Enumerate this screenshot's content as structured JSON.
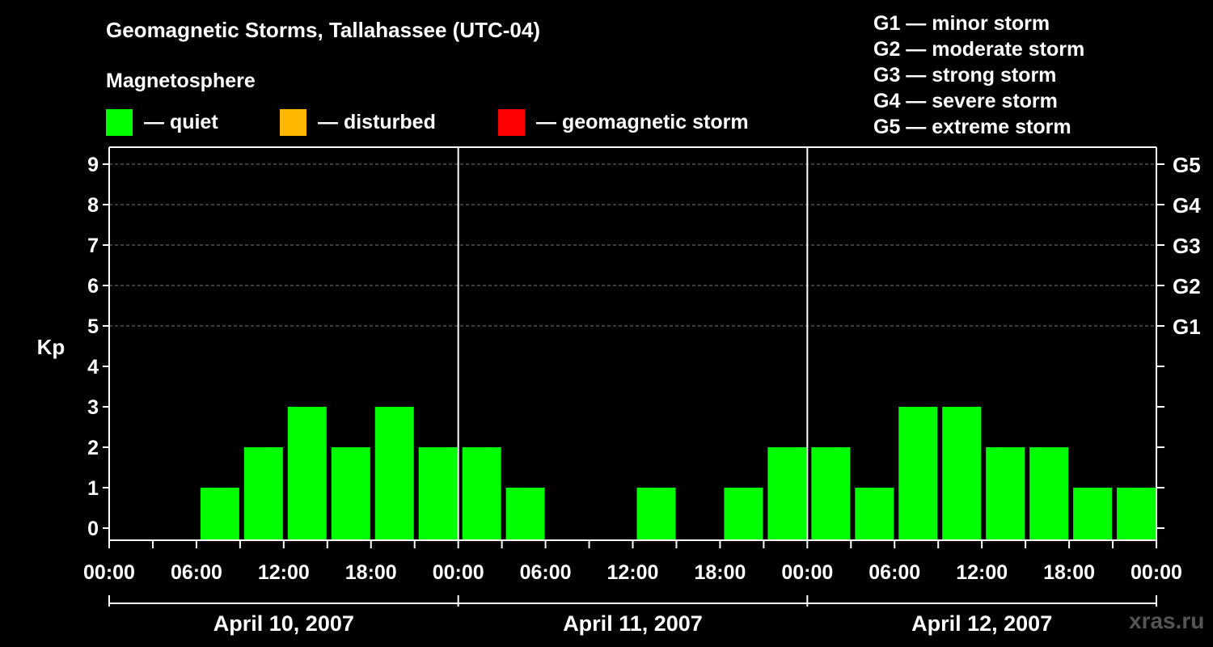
{
  "chart_data": {
    "type": "bar",
    "title": "Geomagnetic Storms, Tallahassee (UTC-04)",
    "ylabel": "Kp",
    "ylim": [
      0,
      9
    ],
    "yticks": [
      "0",
      "1",
      "2",
      "3",
      "4",
      "5",
      "6",
      "7",
      "8",
      "9"
    ],
    "right_ticks": [
      {
        "kp": 5,
        "label": "G1"
      },
      {
        "kp": 6,
        "label": "G2"
      },
      {
        "kp": 7,
        "label": "G3"
      },
      {
        "kp": 8,
        "label": "G4"
      },
      {
        "kp": 9,
        "label": "G5"
      }
    ],
    "grid_levels": [
      5,
      6,
      7,
      8,
      9
    ],
    "xlim_hours": [
      0,
      72
    ],
    "xtick_labels": [
      "00:00",
      "06:00",
      "12:00",
      "18:00",
      "00:00",
      "06:00",
      "12:00",
      "18:00",
      "00:00",
      "06:00",
      "12:00",
      "18:00",
      "00:00"
    ],
    "day_labels": [
      "April 10, 2007",
      "April 11, 2007",
      "April 12, 2007"
    ],
    "interval_hours": 3,
    "values": [
      0,
      0,
      1,
      2,
      3,
      2,
      3,
      2,
      2,
      1,
      0,
      0,
      1,
      0,
      1,
      2,
      2,
      1,
      3,
      3,
      2,
      2,
      1,
      1
    ],
    "colors": {
      "quiet": "#00ff00",
      "disturbed": "#ffb800",
      "storm": "#ff0000"
    }
  },
  "magnetosphere_title": "Magnetosphere",
  "legend": [
    {
      "label": "— quiet",
      "color": "#00ff00"
    },
    {
      "label": "— disturbed",
      "color": "#ffb800"
    },
    {
      "label": "— geomagnetic storm",
      "color": "#ff0000"
    }
  ],
  "g_scale": [
    "G1 — minor storm",
    "G2 — moderate storm",
    "G3 — strong storm",
    "G4 — severe storm",
    "G5 — extreme storm"
  ],
  "watermark": "xras.ru"
}
